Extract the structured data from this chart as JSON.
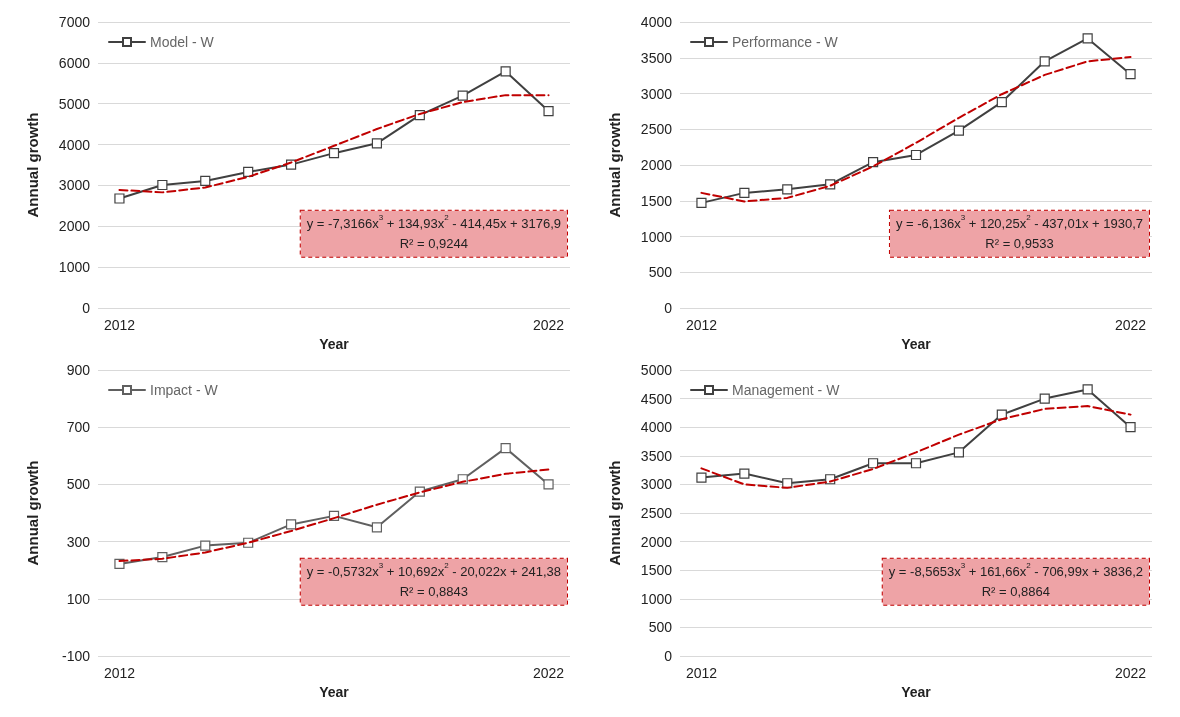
{
  "chart_data": [
    {
      "type": "line",
      "xlabel": "Year",
      "ylabel": "Annual growth",
      "categories": [
        "2012",
        null,
        null,
        null,
        null,
        null,
        null,
        null,
        null,
        null,
        "2022"
      ],
      "ylim": [
        0,
        7000
      ],
      "yticks": [
        0,
        1000,
        2000,
        3000,
        4000,
        5000,
        6000,
        7000
      ],
      "grid": "y",
      "legend": "top left",
      "marker": "square",
      "line_style": "solid",
      "series": [
        {
          "name": "Model - W",
          "color": "#404040",
          "values": [
            2680,
            3010,
            3110,
            3330,
            3510,
            3790,
            4030,
            4720,
            5200,
            5790,
            4820
          ]
        },
        {
          "type": "line",
          "color": "#c00000",
          "marker": "none",
          "line_style": "dashed",
          "values": [
            2890,
            2830,
            2950,
            3210,
            3560,
            3970,
            4380,
            4750,
            5040,
            5210,
            5210
          ]
        }
      ],
      "annotations": [
        "y = -7,3166x$^{3}$ + 134,93x$^{2}$ - 414,45x + 3176,9",
        "R² = 0,9244"
      ]
    },
    {
      "type": "line",
      "xlabel": "Year",
      "ylabel": "Annual growth",
      "categories": [
        "2012",
        null,
        null,
        null,
        null,
        null,
        null,
        null,
        null,
        null,
        "2022"
      ],
      "ylim": [
        0,
        4000
      ],
      "yticks": [
        0,
        500,
        1000,
        1500,
        2000,
        2500,
        3000,
        3500,
        4000
      ],
      "grid": "y",
      "legend": "top left",
      "marker": "square",
      "line_style": "solid",
      "series": [
        {
          "name": "Performance - W",
          "color": "#404040",
          "values": [
            1470,
            1610,
            1660,
            1730,
            2040,
            2140,
            2480,
            2880,
            3450,
            3770,
            3270
          ]
        },
        {
          "type": "line",
          "color": "#c00000",
          "marker": "none",
          "line_style": "dashed",
          "values": [
            1610,
            1490,
            1540,
            1710,
            1980,
            2310,
            2660,
            2990,
            3260,
            3450,
            3510
          ]
        }
      ],
      "annotations": [
        "y = -6,136x$^{3}$ + 120,25x$^{2}$ - 437,01x + 1930,7",
        "R² = 0,9533"
      ]
    },
    {
      "type": "line",
      "xlabel": "Year",
      "ylabel": "Annual growth",
      "categories": [
        "2012",
        null,
        null,
        null,
        null,
        null,
        null,
        null,
        null,
        null,
        "2022"
      ],
      "ylim": [
        -100,
        900
      ],
      "yticks": [
        -100,
        100,
        300,
        500,
        700,
        900
      ],
      "grid": "y",
      "legend": "top left",
      "marker": "square",
      "line_style": "solid",
      "series": [
        {
          "name": "Impact - W",
          "color": "#606060",
          "values": [
            222,
            246,
            286,
            296,
            360,
            390,
            350,
            475,
            518,
            627,
            500
          ]
        },
        {
          "type": "line",
          "color": "#c00000",
          "marker": "none",
          "line_style": "dashed",
          "values": [
            232,
            240,
            262,
            296,
            337,
            382,
            429,
            472,
            509,
            537,
            552
          ]
        }
      ],
      "annotations": [
        "y = -0,5732x$^{3}$ + 10,692x$^{2}$ - 20,022x + 241,38",
        "R² = 0,8843"
      ]
    },
    {
      "type": "line",
      "xlabel": "Year",
      "ylabel": "Annual growth",
      "categories": [
        "2012",
        null,
        null,
        null,
        null,
        null,
        null,
        null,
        null,
        null,
        "2022"
      ],
      "ylim": [
        0,
        5000
      ],
      "yticks": [
        0,
        500,
        1000,
        1500,
        2000,
        2500,
        3000,
        3500,
        4000,
        4500,
        5000
      ],
      "grid": "y",
      "legend": "top left",
      "marker": "square",
      "line_style": "solid",
      "series": [
        {
          "name": "Management - W",
          "color": "#404040",
          "values": [
            3120,
            3190,
            3020,
            3090,
            3370,
            3370,
            3560,
            4220,
            4500,
            4660,
            4000
          ]
        },
        {
          "type": "line",
          "color": "#c00000",
          "marker": "none",
          "line_style": "dashed",
          "values": [
            3280,
            3000,
            2940,
            3050,
            3270,
            3560,
            3870,
            4140,
            4320,
            4370,
            4220
          ]
        }
      ],
      "annotations": [
        "y = -8,5653x$^{3}$ + 161,66x$^{2}$ - 706,99x + 3836,2",
        "R² = 0,8864"
      ]
    }
  ]
}
